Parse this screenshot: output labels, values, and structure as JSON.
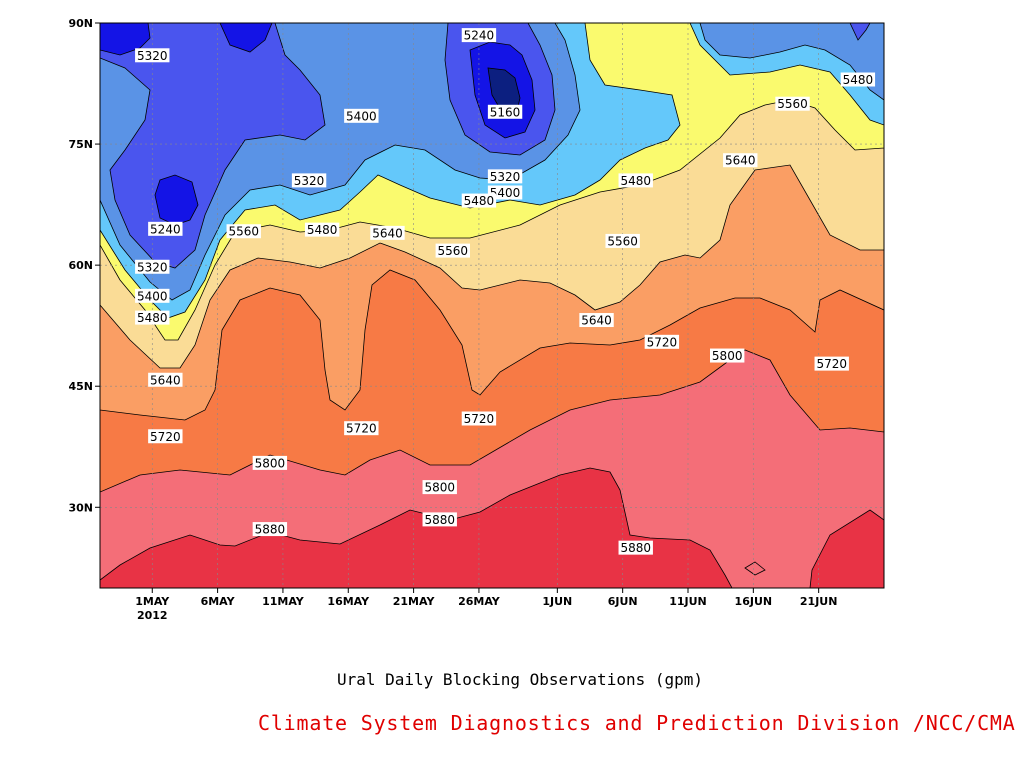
{
  "caption": "Ural Daily Blocking Observations (gpm)",
  "credit": "Climate System Diagnostics and Prediction Division /NCC/CMA",
  "chart_data": {
    "type": "contour",
    "xlabel": "",
    "ylabel": "",
    "x_ticks": [
      "1MAY",
      "6MAY",
      "11MAY",
      "16MAY",
      "21MAY",
      "26MAY",
      "1JUN",
      "6JUN",
      "11JUN",
      "16JUN",
      "21JUN"
    ],
    "x_year_label": "2012",
    "y_ticks": [
      "30N",
      "45N",
      "60N",
      "75N",
      "90N"
    ],
    "xlim": [
      "2012-04-27",
      "2012-06-26"
    ],
    "ylim": [
      20,
      90
    ],
    "contour_levels": [
      5160,
      5240,
      5320,
      5400,
      5480,
      5560,
      5640,
      5720,
      5800,
      5880
    ],
    "fill_colors": [
      "#0c1f80",
      "#1414e6",
      "#4a55ee",
      "#5a93e6",
      "#64c8fa",
      "#fafa6e",
      "#fadc96",
      "#fa9e64",
      "#f77a45",
      "#f46e78",
      "#e83345"
    ],
    "contour_labels": [
      {
        "value": "5320",
        "date": "2012-05-01",
        "lat": 86.0
      },
      {
        "value": "5240",
        "date": "2012-05-26",
        "lat": 88.5
      },
      {
        "value": "5160",
        "date": "2012-05-28",
        "lat": 79.0
      },
      {
        "value": "5480",
        "date": "2012-06-24",
        "lat": 83.0
      },
      {
        "value": "5560",
        "date": "2012-06-19",
        "lat": 80.0
      },
      {
        "value": "5400",
        "date": "2012-05-17",
        "lat": 78.5
      },
      {
        "value": "5320",
        "date": "2012-05-13",
        "lat": 70.5
      },
      {
        "value": "5320",
        "date": "2012-05-28",
        "lat": 71.0
      },
      {
        "value": "5400",
        "date": "2012-05-28",
        "lat": 69.0
      },
      {
        "value": "5480",
        "date": "2012-05-26",
        "lat": 68.0
      },
      {
        "value": "5480",
        "date": "2012-06-07",
        "lat": 70.5
      },
      {
        "value": "5640",
        "date": "2012-06-15",
        "lat": 73.0
      },
      {
        "value": "5240",
        "date": "2012-05-02",
        "lat": 64.5
      },
      {
        "value": "5560",
        "date": "2012-05-08",
        "lat": 64.2
      },
      {
        "value": "5480",
        "date": "2012-05-14",
        "lat": 64.4
      },
      {
        "value": "5640",
        "date": "2012-05-19",
        "lat": 64.0
      },
      {
        "value": "5560",
        "date": "2012-05-24",
        "lat": 61.8
      },
      {
        "value": "5560",
        "date": "2012-06-06",
        "lat": 63.0
      },
      {
        "value": "5320",
        "date": "2012-05-01",
        "lat": 59.8
      },
      {
        "value": "5400",
        "date": "2012-05-01",
        "lat": 56.2
      },
      {
        "value": "5480",
        "date": "2012-05-01",
        "lat": 53.5
      },
      {
        "value": "5640",
        "date": "2012-06-04",
        "lat": 53.2
      },
      {
        "value": "5720",
        "date": "2012-06-09",
        "lat": 50.5
      },
      {
        "value": "5800",
        "date": "2012-06-14",
        "lat": 48.8
      },
      {
        "value": "5720",
        "date": "2012-06-22",
        "lat": 47.8
      },
      {
        "value": "5640",
        "date": "2012-05-02",
        "lat": 45.8
      },
      {
        "value": "5720",
        "date": "2012-05-17",
        "lat": 39.8
      },
      {
        "value": "5720",
        "date": "2012-05-26",
        "lat": 41.0
      },
      {
        "value": "5720",
        "date": "2012-05-02",
        "lat": 38.8
      },
      {
        "value": "5800",
        "date": "2012-05-10",
        "lat": 35.5
      },
      {
        "value": "5800",
        "date": "2012-05-23",
        "lat": 32.5
      },
      {
        "value": "5880",
        "date": "2012-05-10",
        "lat": 27.3
      },
      {
        "value": "5880",
        "date": "2012-05-23",
        "lat": 28.5
      },
      {
        "value": "5880",
        "date": "2012-06-07",
        "lat": 25.0
      }
    ]
  }
}
